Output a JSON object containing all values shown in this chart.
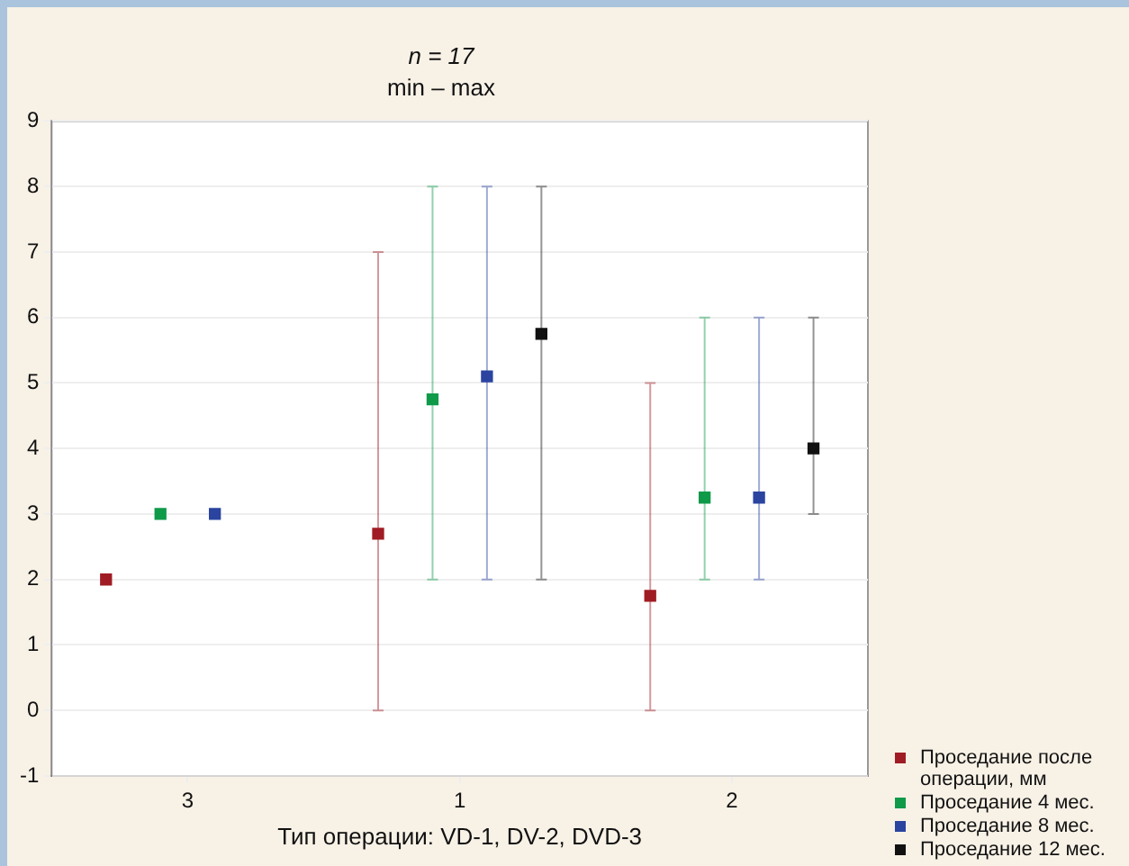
{
  "chart_data": {
    "type": "scatter",
    "title": "n = 17",
    "subtitle": "min – max",
    "xlabel": "Тип операции: VD-1, DV-2, DVD-3",
    "categories": [
      "3",
      "1",
      "2"
    ],
    "series": [
      {
        "name": "Проседание после операции, мм",
        "color": "#a01c24",
        "values": [
          2,
          2.7,
          1.75
        ],
        "errors": [
          null,
          [
            0,
            7
          ],
          [
            0,
            5
          ]
        ]
      },
      {
        "name": "Проседание 4 мес.",
        "color": "#0f9a4a",
        "values": [
          3,
          4.75,
          3.25
        ],
        "errors": [
          null,
          [
            2,
            8
          ],
          [
            2,
            6
          ]
        ]
      },
      {
        "name": "Проседание 8 мес.",
        "color": "#2a44a0",
        "values": [
          3,
          5.1,
          3.25
        ],
        "errors": [
          null,
          [
            2,
            8
          ],
          [
            2,
            6
          ]
        ]
      },
      {
        "name": "Проседание 12 мес.",
        "color": "#111111",
        "values": [
          null,
          5.75,
          4
        ],
        "errors": [
          null,
          [
            2,
            8
          ],
          [
            3,
            6
          ]
        ]
      }
    ],
    "ylim": [
      -1,
      9
    ],
    "yticks": [
      -1,
      0,
      1,
      2,
      3,
      4,
      5,
      6,
      7,
      8,
      9
    ],
    "grid": "y",
    "legend": "bottom right",
    "marker": "square"
  }
}
